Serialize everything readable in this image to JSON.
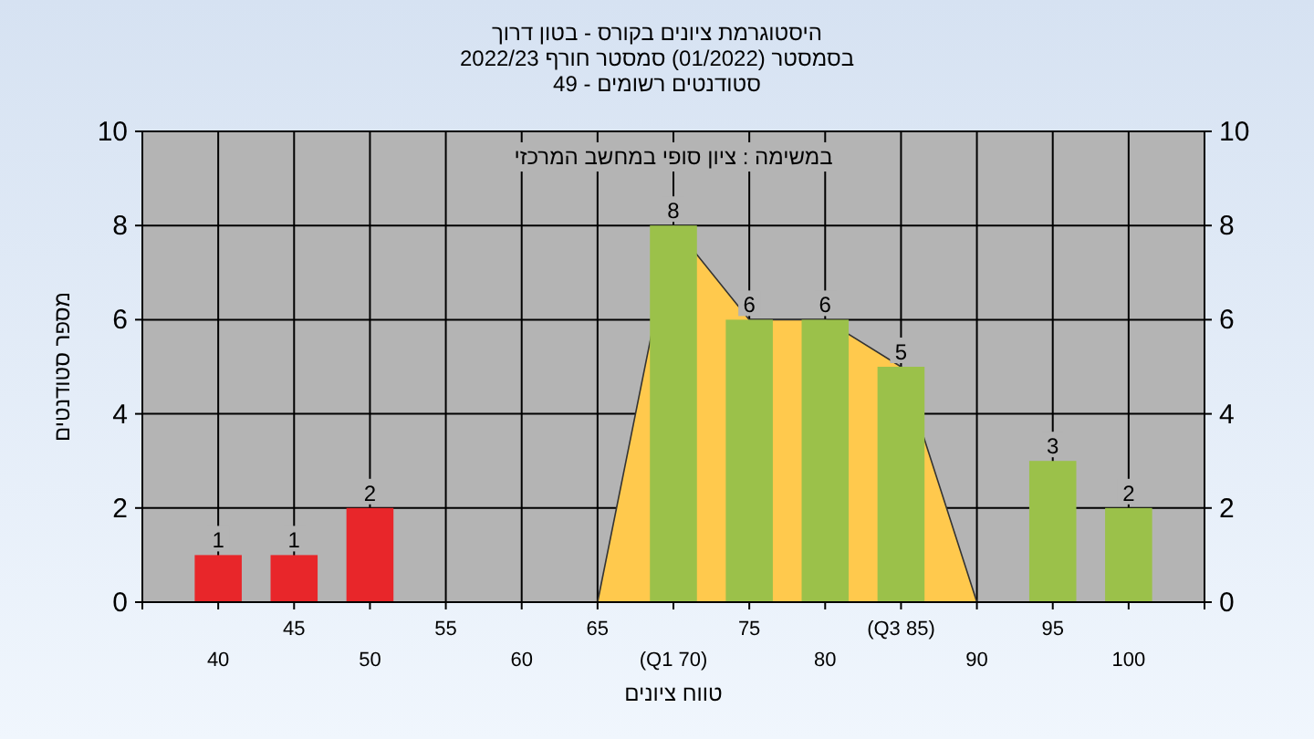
{
  "chart_data": {
    "type": "bar",
    "title": "היסטוגרמת ציונים בקורס - בטון דרוך",
    "subtitle": "בסמסטר (01/2022) סמסטר חורף 2022/23",
    "annotations": [
      "סטודנטים רשומים - 49",
      "במשימה : ציון סופי במחשב המרכזי"
    ],
    "xlabel": "טווח ציונים",
    "ylabel": "מספר סטודנטים",
    "categories": [
      "40",
      "45",
      "50",
      "55",
      "60",
      "65",
      "(Q1 70)",
      "75",
      "80",
      "(Q3 85)",
      "90",
      "95",
      "100"
    ],
    "series": [
      {
        "type": "area",
        "color": "#ffc94d",
        "values": [
          null,
          null,
          null,
          null,
          null,
          0,
          8,
          6,
          6,
          5,
          0,
          null,
          null
        ]
      },
      {
        "colors": [
          "#e8262a",
          "#e8262a",
          "#e8262a",
          "#9bc14a",
          "#9bc14a",
          "#9bc14a",
          "#9bc14a",
          "#9bc14a",
          "#9bc14a",
          "#9bc14a",
          "#9bc14a",
          "#9bc14a",
          "#9bc14a"
        ],
        "values": [
          1,
          1,
          2,
          0,
          0,
          0,
          8,
          6,
          6,
          5,
          0,
          3,
          2
        ],
        "value_labels": [
          "1",
          "1",
          "2",
          null,
          null,
          null,
          "8",
          "6",
          "6",
          "5",
          null,
          "3",
          "2"
        ]
      }
    ],
    "ylim": [
      0,
      10
    ],
    "yticks": [
      0,
      2,
      4,
      6,
      8,
      10
    ],
    "y2lim": [
      0,
      10
    ],
    "y2ticks": [
      0,
      2,
      4,
      6,
      8,
      10
    ],
    "grid": true
  }
}
